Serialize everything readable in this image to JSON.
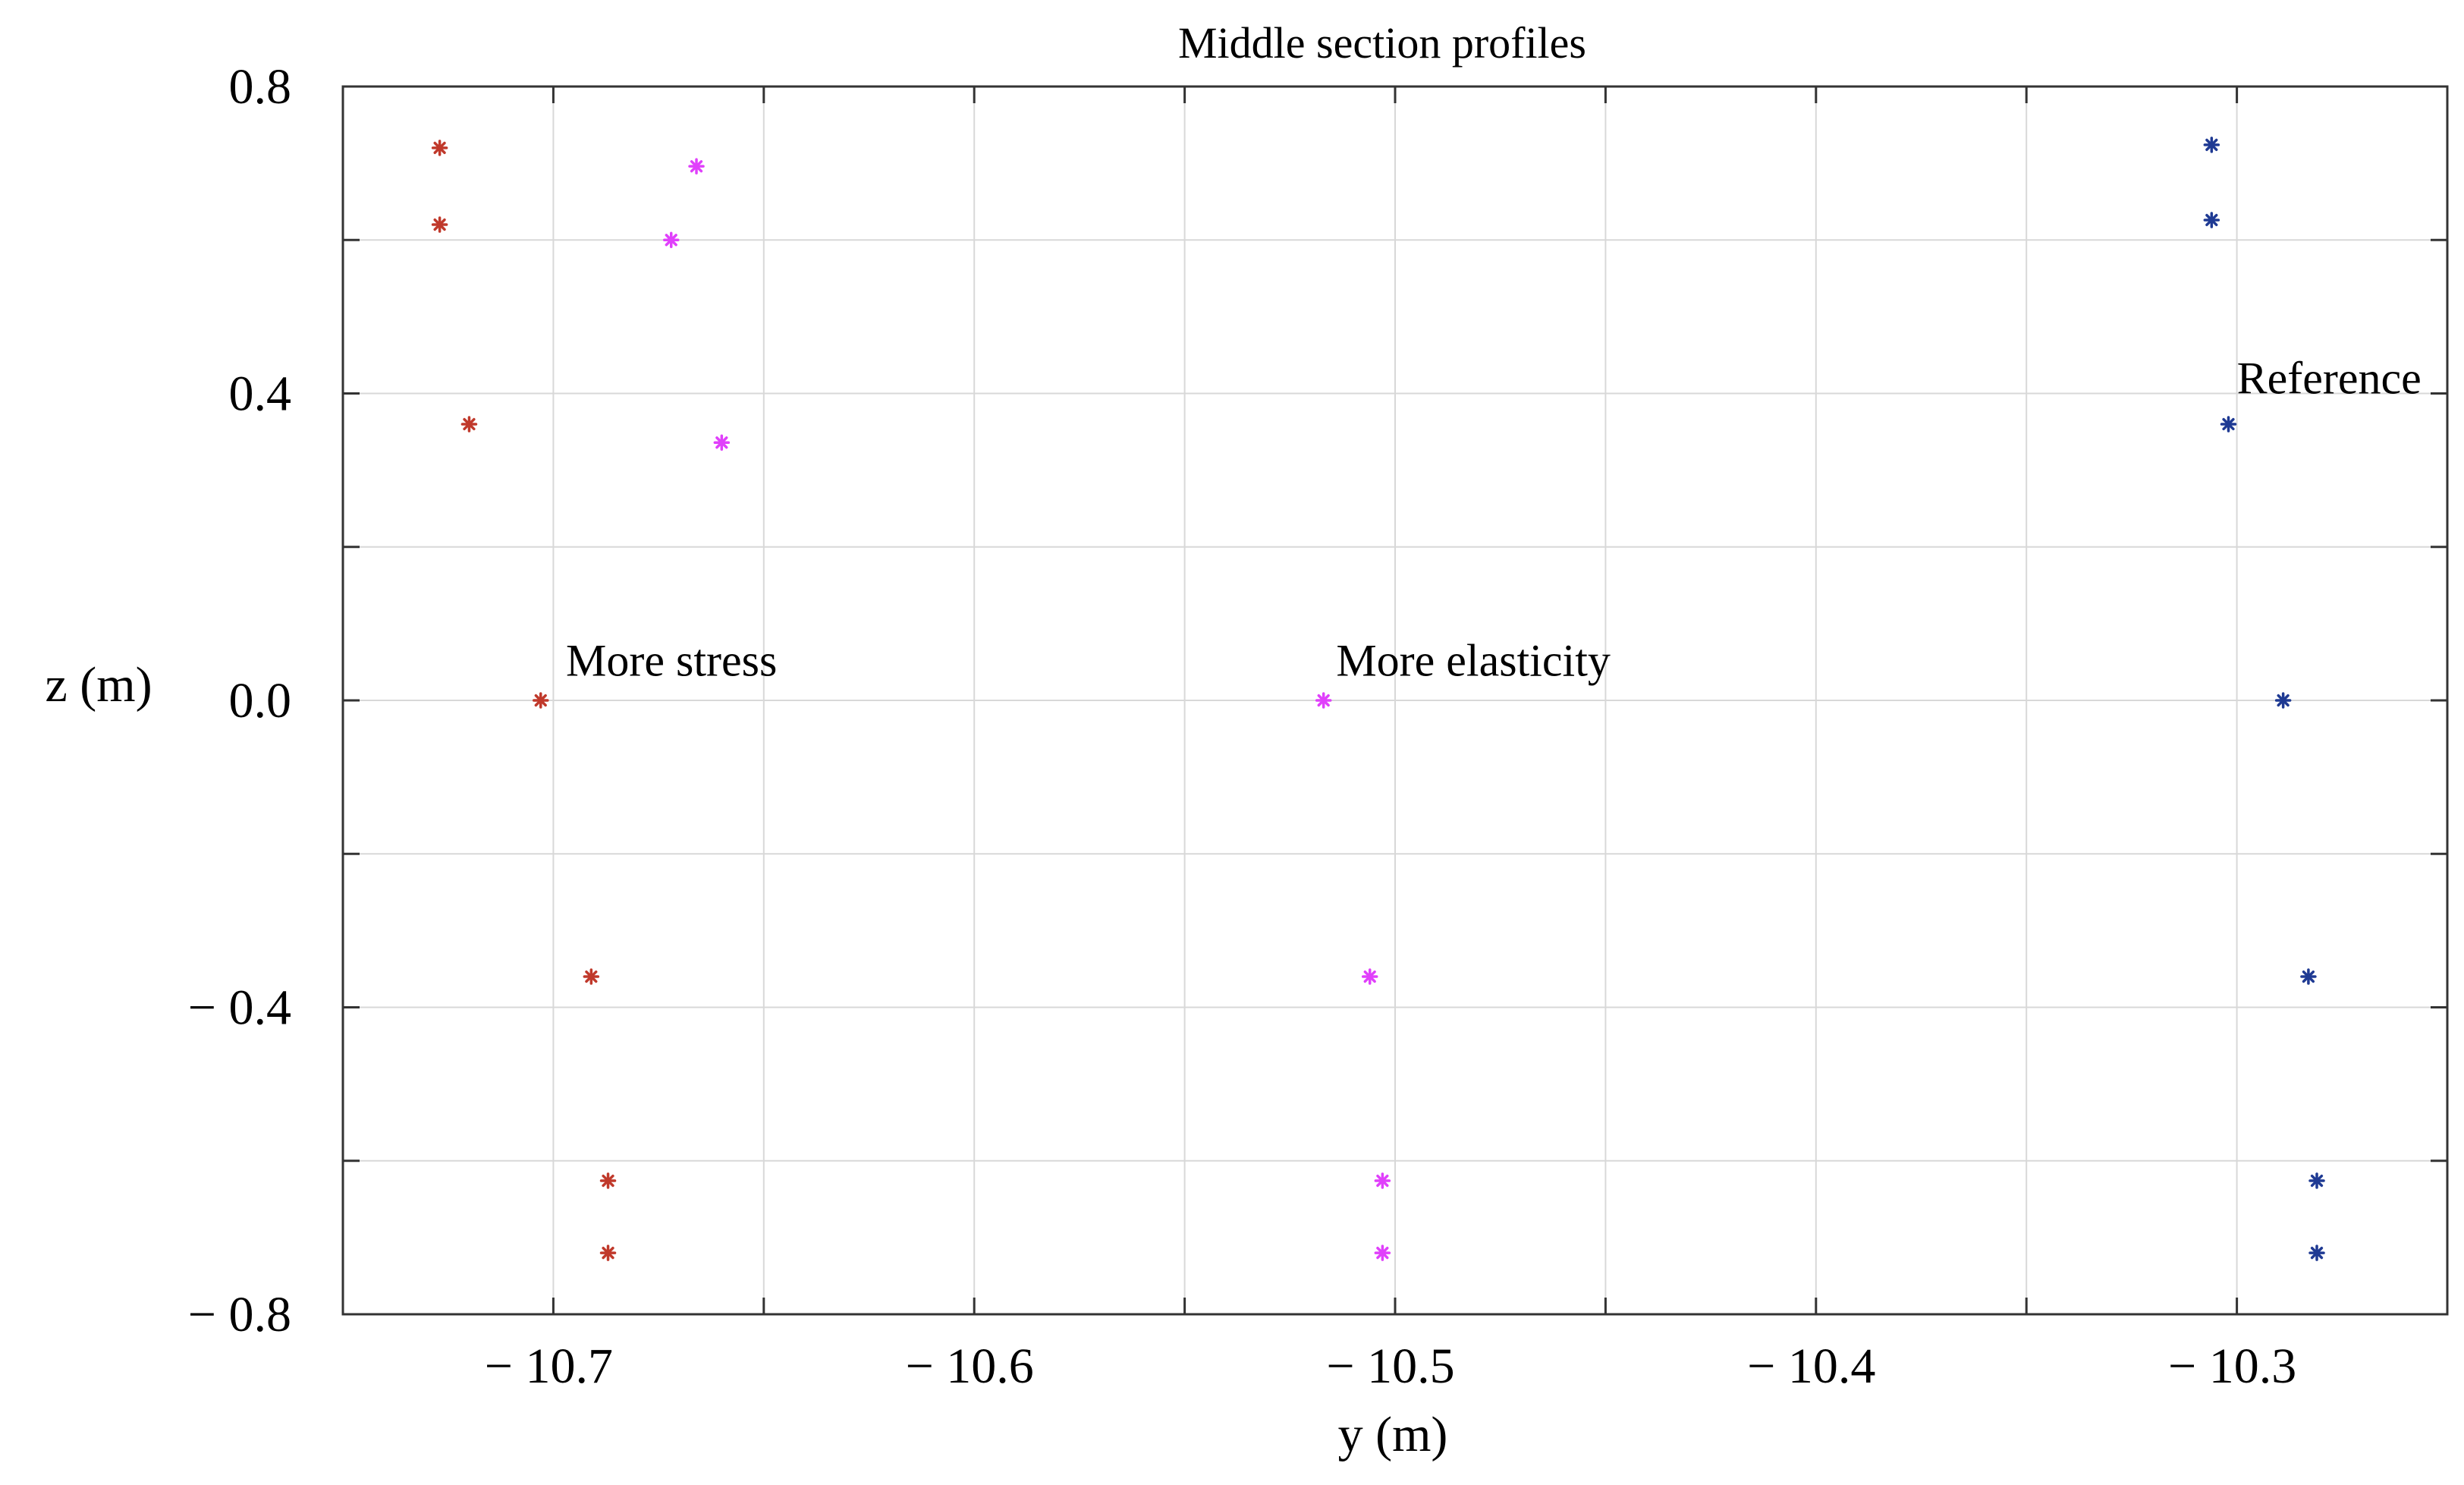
{
  "chart_data": {
    "type": "scatter",
    "title": "Middle section profiles",
    "xlabel": "y (m)",
    "ylabel": "z (m)",
    "xlim": [
      -10.75,
      -10.25
    ],
    "ylim": [
      -0.8,
      0.8
    ],
    "x_major_ticks": [
      -10.7,
      -10.6,
      -10.5,
      -10.4,
      -10.3
    ],
    "x_minor_ticks": [
      -10.65,
      -10.55,
      -10.45,
      -10.35
    ],
    "x_tick_labels": [
      "− 10.7",
      "− 10.6",
      "− 10.5",
      "− 10.4",
      "− 10.3"
    ],
    "y_major_ticks": [
      0.8,
      0.4,
      0.0,
      -0.4,
      -0.8
    ],
    "y_minor_ticks": [
      0.6,
      0.2,
      -0.2,
      -0.6
    ],
    "y_tick_labels": [
      "0.8",
      "0.4",
      "0.0",
      "− 0.4",
      "− 0.8"
    ],
    "grid": true,
    "marker": "*",
    "series": [
      {
        "name": "More stress",
        "color": "#c0392b",
        "points": [
          {
            "x": -10.727,
            "y": 0.72
          },
          {
            "x": -10.727,
            "y": 0.62
          },
          {
            "x": -10.72,
            "y": 0.36
          },
          {
            "x": -10.703,
            "y": 0.0
          },
          {
            "x": -10.691,
            "y": -0.36
          },
          {
            "x": -10.687,
            "y": -0.626
          },
          {
            "x": -10.687,
            "y": -0.72
          }
        ]
      },
      {
        "name": "More elasticity",
        "color": "#e040fb",
        "points": [
          {
            "x": -10.666,
            "y": 0.696
          },
          {
            "x": -10.672,
            "y": 0.6
          },
          {
            "x": -10.66,
            "y": 0.336
          },
          {
            "x": -10.517,
            "y": 0.0
          },
          {
            "x": -10.506,
            "y": -0.36
          },
          {
            "x": -10.503,
            "y": -0.626
          },
          {
            "x": -10.503,
            "y": -0.72
          }
        ]
      },
      {
        "name": "Reference",
        "color": "#1f3a93",
        "points": [
          {
            "x": -10.306,
            "y": 0.724
          },
          {
            "x": -10.306,
            "y": 0.626
          },
          {
            "x": -10.302,
            "y": 0.36
          },
          {
            "x": -10.289,
            "y": 0.0
          },
          {
            "x": -10.283,
            "y": -0.36
          },
          {
            "x": -10.281,
            "y": -0.626
          },
          {
            "x": -10.281,
            "y": -0.72
          }
        ]
      }
    ],
    "annotations": [
      {
        "text": "More stress",
        "x": -10.697,
        "y": 0.032
      },
      {
        "text": "More elasticity",
        "x": -10.514,
        "y": 0.032
      },
      {
        "text": "Reference",
        "x": -10.3,
        "y": 0.4
      }
    ]
  }
}
